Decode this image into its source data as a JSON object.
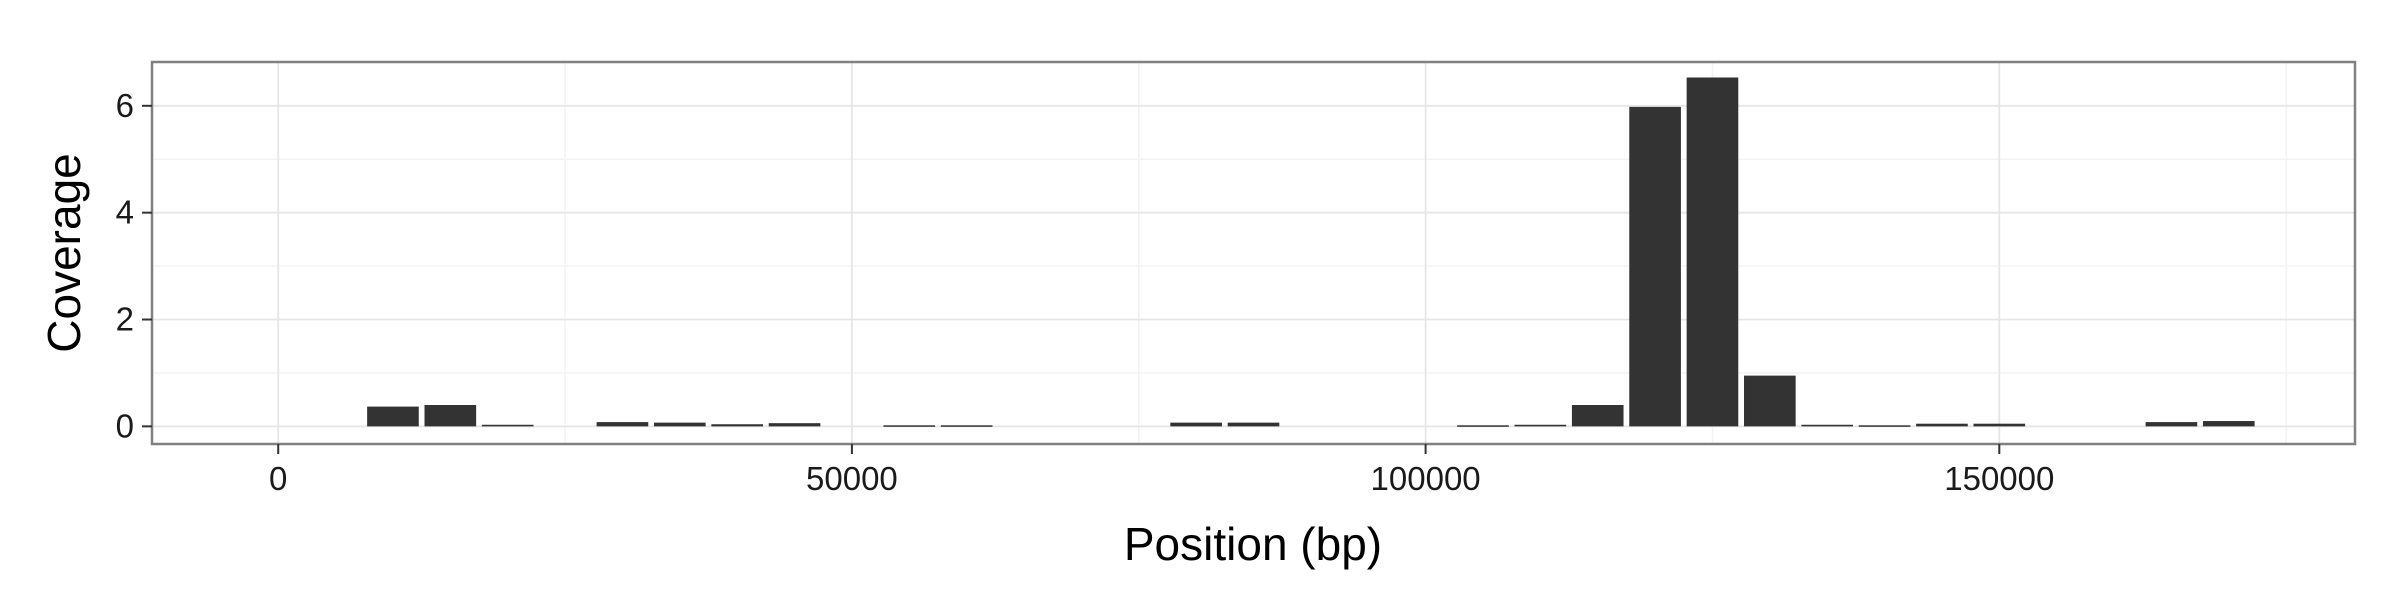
{
  "chart_data": {
    "type": "bar",
    "title": "",
    "xlabel": "Position (bp)",
    "ylabel": "Coverage",
    "xlim": [
      -11000,
      181000
    ],
    "ylim": [
      -0.33,
      6.82
    ],
    "x_ticks": [
      0,
      50000,
      100000,
      150000
    ],
    "x_tick_labels": [
      "0",
      "50000",
      "100000",
      "150000"
    ],
    "y_ticks": [
      0,
      2,
      4,
      6
    ],
    "y_tick_labels": [
      "0",
      "2",
      "4",
      "6"
    ],
    "bin_width": 5000,
    "grid": true,
    "legend": "none",
    "colors": {
      "bar": "#333333",
      "panel_background": "#ffffff",
      "grid_major": "#e6e6e6",
      "grid_minor": "#f3f3f3",
      "panel_border": "#808080"
    },
    "bars": [
      {
        "x": 10000,
        "value": 0.37
      },
      {
        "x": 15000,
        "value": 0.4
      },
      {
        "x": 20000,
        "value": 0.03
      },
      {
        "x": 30000,
        "value": 0.08
      },
      {
        "x": 35000,
        "value": 0.07
      },
      {
        "x": 40000,
        "value": 0.04
      },
      {
        "x": 45000,
        "value": 0.06
      },
      {
        "x": 55000,
        "value": 0.02
      },
      {
        "x": 60000,
        "value": 0.02
      },
      {
        "x": 80000,
        "value": 0.07
      },
      {
        "x": 85000,
        "value": 0.07
      },
      {
        "x": 105000,
        "value": 0.02
      },
      {
        "x": 110000,
        "value": 0.03
      },
      {
        "x": 115000,
        "value": 0.4
      },
      {
        "x": 120000,
        "value": 5.98
      },
      {
        "x": 125000,
        "value": 6.53
      },
      {
        "x": 130000,
        "value": 0.95
      },
      {
        "x": 135000,
        "value": 0.03
      },
      {
        "x": 140000,
        "value": 0.02
      },
      {
        "x": 145000,
        "value": 0.05
      },
      {
        "x": 150000,
        "value": 0.05
      },
      {
        "x": 165000,
        "value": 0.08
      },
      {
        "x": 170000,
        "value": 0.1
      }
    ]
  }
}
